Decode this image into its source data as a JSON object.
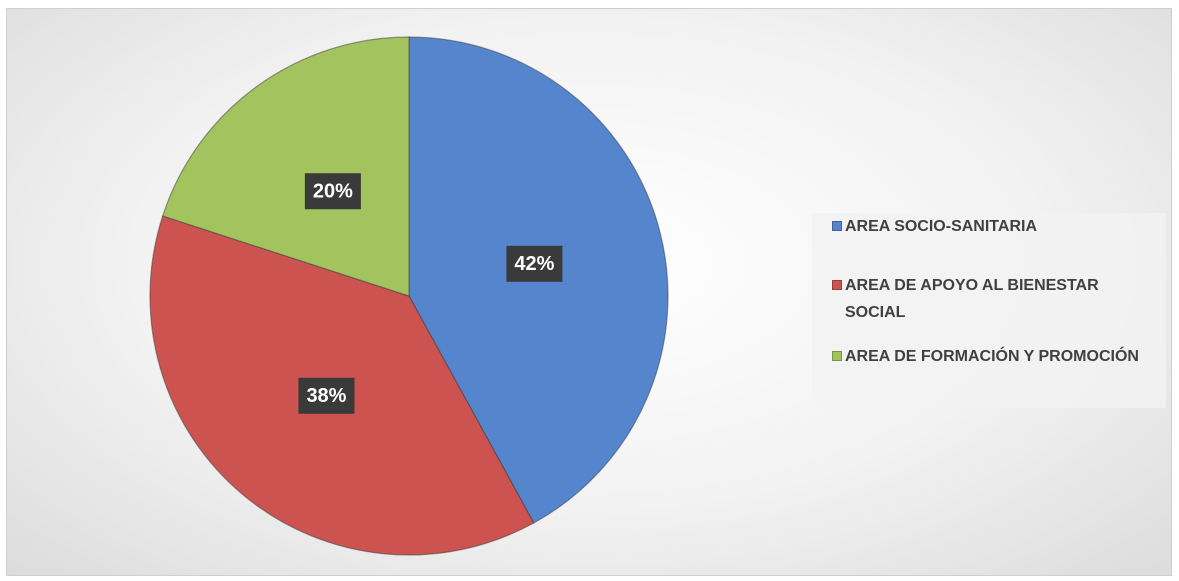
{
  "chart_data": {
    "type": "pie",
    "categories": [
      "AREA SOCIO-SANITARIA",
      "AREA DE APOYO AL BIENESTAR SOCIAL",
      "AREA DE FORMACIÓN Y PROMOCIÓN"
    ],
    "values": [
      42,
      38,
      20
    ],
    "value_labels": [
      "42%",
      "38%",
      "20%"
    ],
    "colors": [
      "#5585cc",
      "#cc5350",
      "#a2c35e"
    ],
    "legend": "right"
  }
}
